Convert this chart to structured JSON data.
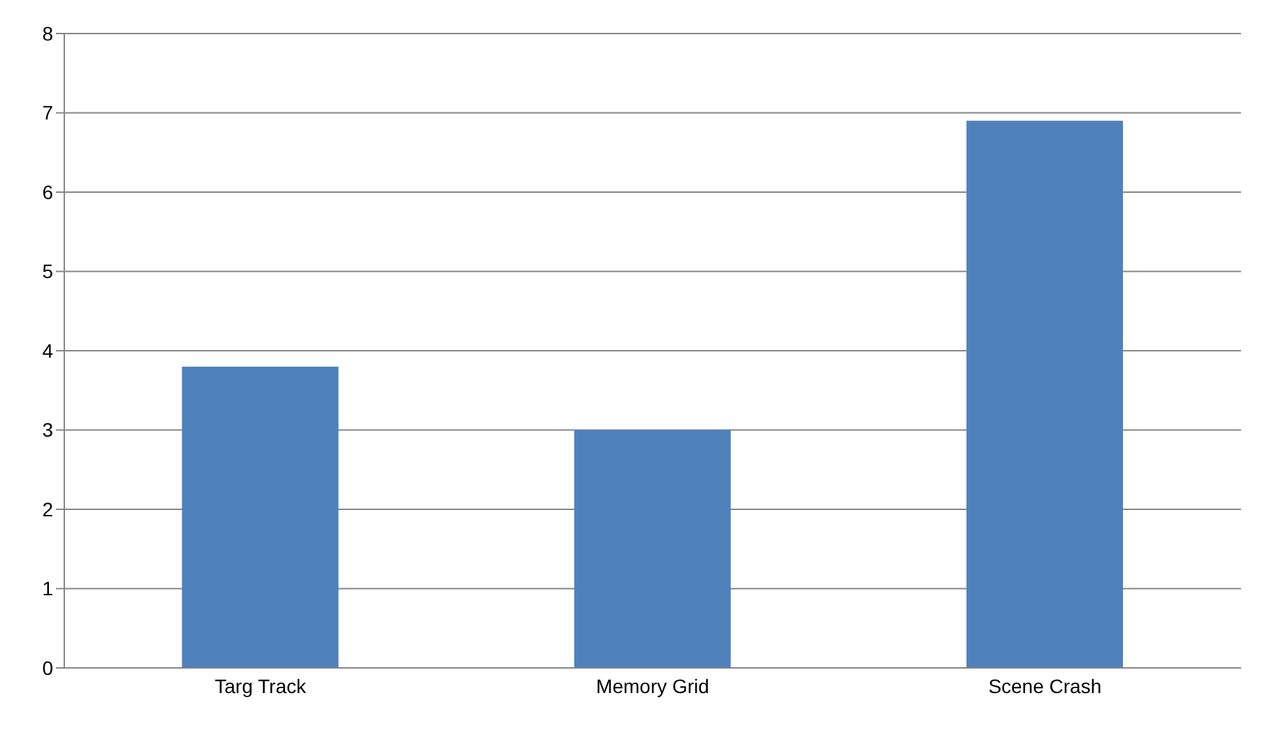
{
  "chart_data": {
    "type": "bar",
    "categories": [
      "Targ Track",
      "Memory Grid",
      "Scene Crash"
    ],
    "values": [
      3.8,
      3.0,
      6.9
    ],
    "color": "#4f81bd",
    "ylim": [
      0,
      8
    ],
    "yticks": [
      0,
      1,
      2,
      3,
      4,
      5,
      6,
      7,
      8
    ],
    "grid": "y"
  }
}
